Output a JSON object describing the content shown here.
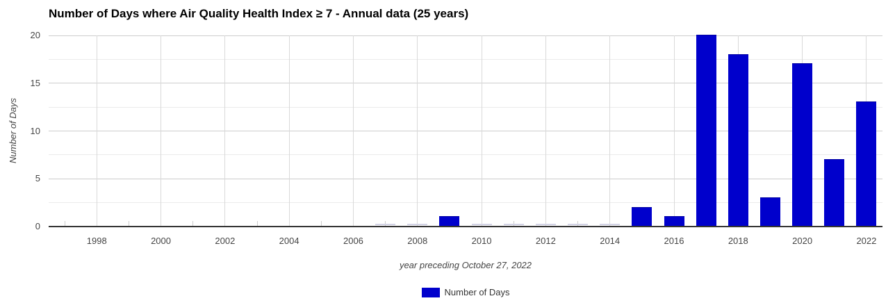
{
  "chart_data": {
    "type": "bar",
    "title": "Number of Days where Air Quality Health Index ≥ 7 - Annual data (25 years)",
    "xlabel": "year preceding October 27, 2022",
    "ylabel": "Number of Days",
    "legend": {
      "position": "bottom",
      "label": "Number of Days"
    },
    "ylim": [
      0,
      20
    ],
    "yticks": [
      0,
      5,
      10,
      15,
      20
    ],
    "yticks_minor": [
      2.5,
      7.5,
      12.5,
      17.5
    ],
    "x_domain": [
      1996.5,
      2022.5
    ],
    "xticks": [
      1998,
      2000,
      2002,
      2004,
      2006,
      2008,
      2010,
      2012,
      2014,
      2016,
      2018,
      2020,
      2022
    ],
    "categories": [
      1997,
      1998,
      1999,
      2000,
      2001,
      2002,
      2003,
      2004,
      2005,
      2006,
      2007,
      2008,
      2009,
      2010,
      2011,
      2012,
      2013,
      2014,
      2015,
      2016,
      2017,
      2018,
      2019,
      2020,
      2021,
      2022
    ],
    "values": [
      null,
      null,
      null,
      null,
      null,
      null,
      null,
      null,
      null,
      null,
      0,
      0,
      1,
      0,
      0,
      0,
      0,
      0,
      2,
      1,
      20,
      18,
      3,
      17,
      7,
      13
    ],
    "grid": true,
    "colors": {
      "bar": "#0000cc",
      "zero_bar": "#d4d4e6",
      "grid_major": "#cccccc",
      "grid_minor": "#ebebeb",
      "grid_vert": "#d9d9d9",
      "baseline": "#333333",
      "text": "#444444",
      "title": "#000000"
    }
  }
}
